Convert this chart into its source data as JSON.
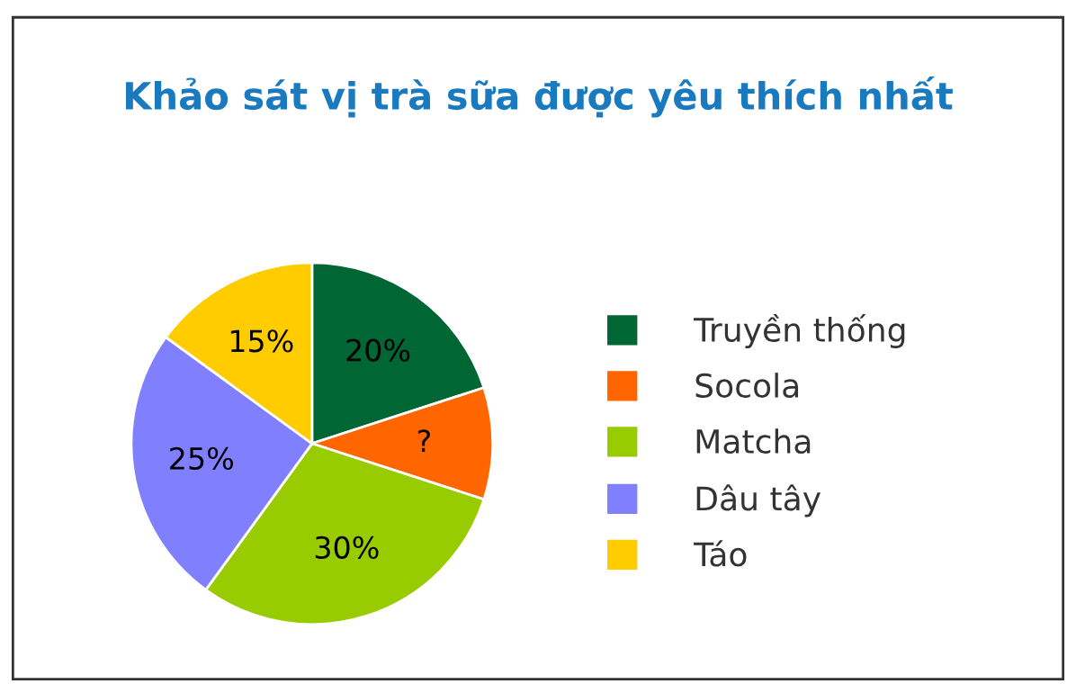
{
  "chart_data": {
    "type": "pie",
    "title": "Khảo sát vị trà sữa được yêu thích nhất",
    "categories": [
      "Truyền thống",
      "Socola",
      "Matcha",
      "Dâu tây",
      "Táo"
    ],
    "values": [
      20,
      10,
      30,
      25,
      15
    ],
    "value_labels": [
      "20%",
      "?",
      "30%",
      "25%",
      "15%"
    ],
    "colors": [
      "#006633",
      "#ff6600",
      "#99cc00",
      "#8080ff",
      "#ffcc00"
    ],
    "legend": "right"
  }
}
